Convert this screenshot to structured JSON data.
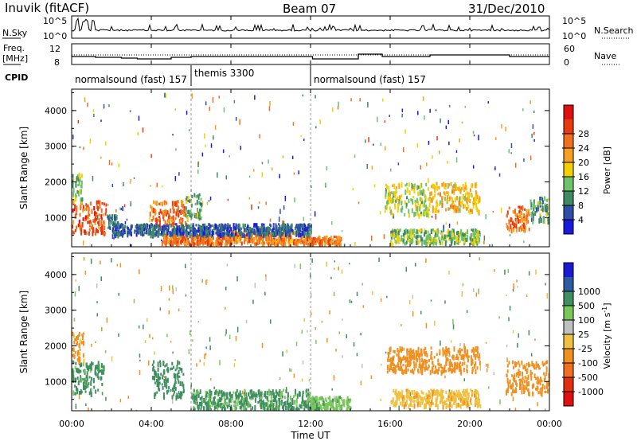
{
  "header": {
    "station": "Inuvik (fitACF)",
    "beam": "Beam 07",
    "date": "31/Dec/2010"
  },
  "nsky_panel": {
    "left_label": "N.Sky",
    "right_label": "N.Search",
    "left_ticks": [
      "10^5",
      "10^0"
    ],
    "right_ticks": [
      "10^5",
      "10^0"
    ]
  },
  "freq_panel": {
    "left_label": "Freq.",
    "left_unit": "[MHz]",
    "right_label": "Nave",
    "left_ticks": [
      "12",
      "8"
    ],
    "right_ticks": [
      "60",
      "0"
    ],
    "cpid_label": "CPID"
  },
  "cpid_segments": [
    {
      "label": "normalsound (fast) 157",
      "start_hour": 0
    },
    {
      "label": "themis 3300",
      "start_hour": 6
    },
    {
      "label": "normalsound (fast) 157",
      "start_hour": 12
    }
  ],
  "time_axis": {
    "label": "Time UT",
    "ticks": [
      "00:00",
      "04:00",
      "08:00",
      "12:00",
      "16:00",
      "20:00",
      "00:00"
    ]
  },
  "range_axis": {
    "label": "Slant Range [km]",
    "ticks": [
      "1000",
      "2000",
      "3000",
      "4000"
    ]
  },
  "power_colorbar": {
    "title": "Power [dB]",
    "labels": [
      "4",
      "8",
      "12",
      "16",
      "20",
      "24",
      "28"
    ],
    "colors": [
      "#1a1adc",
      "#2e4ea8",
      "#3f8a63",
      "#6cc36c",
      "#f5d000",
      "#f5a020",
      "#f07020",
      "#e83a10",
      "#e01010"
    ]
  },
  "velocity_colorbar": {
    "title": "Velocity [m s^-1]",
    "labels": [
      "1000",
      "500",
      "100",
      "25",
      "-25",
      "-100",
      "-500",
      "-1000"
    ],
    "colors": [
      "#1a1ad0",
      "#2e5aa0",
      "#3f8f60",
      "#7ac85a",
      "#c0c0c0",
      "#f0c040",
      "#f09020",
      "#f07020",
      "#e03010",
      "#e01010"
    ]
  },
  "chart_data": [
    {
      "type": "heatmap",
      "title": "Power [dB]",
      "xlabel": "Time UT",
      "ylabel": "Slant Range [km]",
      "xlim": [
        0,
        24
      ],
      "ylim": [
        180,
        4600
      ],
      "patches": [
        {
          "t0": 0.0,
          "t1": 1.7,
          "r0": 600,
          "r1": 1500,
          "value": 28
        },
        {
          "t0": 0.0,
          "t1": 0.5,
          "r0": 1500,
          "r1": 2300,
          "value": 14
        },
        {
          "t0": 1.7,
          "t1": 2.3,
          "r0": 700,
          "r1": 1100,
          "value": 10
        },
        {
          "t0": 3.9,
          "t1": 5.7,
          "r0": 700,
          "r1": 1500,
          "value": 27
        },
        {
          "t0": 5.7,
          "t1": 6.5,
          "r0": 1000,
          "r1": 1700,
          "value": 12
        },
        {
          "t0": 4.5,
          "t1": 8.0,
          "r0": 280,
          "r1": 550,
          "value": 26
        },
        {
          "t0": 8.0,
          "t1": 11.5,
          "r0": 300,
          "r1": 650,
          "value": 24
        },
        {
          "t0": 11.5,
          "t1": 13.5,
          "r0": 280,
          "r1": 500,
          "value": 25
        },
        {
          "t0": 2.0,
          "t1": 12.0,
          "r0": 550,
          "r1": 850,
          "value": 7
        },
        {
          "t0": 15.7,
          "t1": 18.0,
          "r0": 1100,
          "r1": 2000,
          "value": 16
        },
        {
          "t0": 18.0,
          "t1": 20.5,
          "r0": 1200,
          "r1": 2000,
          "value": 20
        },
        {
          "t0": 16.0,
          "t1": 20.5,
          "r0": 300,
          "r1": 700,
          "value": 14
        },
        {
          "t0": 21.8,
          "t1": 23.0,
          "r0": 700,
          "r1": 1400,
          "value": 26
        },
        {
          "t0": 23.0,
          "t1": 24.0,
          "r0": 900,
          "r1": 1600,
          "value": 12
        }
      ]
    },
    {
      "type": "heatmap",
      "title": "Velocity [m s^-1]",
      "xlabel": "Time UT",
      "ylabel": "Slant Range [km]",
      "xlim": [
        0,
        24
      ],
      "ylim": [
        180,
        4600
      ],
      "patches": [
        {
          "t0": 0.0,
          "t1": 1.6,
          "r0": 700,
          "r1": 1600,
          "value": 150
        },
        {
          "t0": 0.0,
          "t1": 0.6,
          "r0": 1600,
          "r1": 2400,
          "value": -150
        },
        {
          "t0": 4.0,
          "t1": 5.6,
          "r0": 600,
          "r1": 1600,
          "value": 200
        },
        {
          "t0": 6.0,
          "t1": 12.0,
          "r0": 250,
          "r1": 800,
          "value": 120
        },
        {
          "t0": 12.0,
          "t1": 14.0,
          "r0": 250,
          "r1": 600,
          "value": 80
        },
        {
          "t0": 15.8,
          "t1": 20.5,
          "r0": 1300,
          "r1": 2000,
          "value": -300
        },
        {
          "t0": 16.0,
          "t1": 20.5,
          "r0": 350,
          "r1": 800,
          "value": -80
        },
        {
          "t0": 21.8,
          "t1": 24.0,
          "r0": 700,
          "r1": 1600,
          "value": -200
        }
      ]
    }
  ]
}
